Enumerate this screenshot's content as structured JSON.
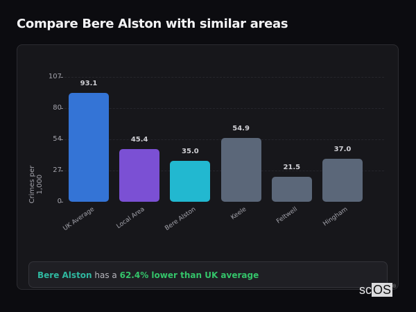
{
  "header": {
    "title": "Compare Bere Alston with similar areas"
  },
  "chart_data": {
    "type": "bar",
    "title": "Compare Bere Alston with similar areas",
    "xlabel": "",
    "ylabel": "Crimes per 1,000",
    "ylim": [
      0,
      107
    ],
    "yticks": [
      "0",
      "27",
      "54",
      "80",
      "107"
    ],
    "grid": true,
    "categories": [
      "UK Average",
      "Local Area",
      "Bere Alston",
      "Keele",
      "Feltwell",
      "Hingham"
    ],
    "values": [
      93.1,
      45.4,
      35.0,
      54.9,
      21.5,
      37.0
    ],
    "value_labels": [
      "93.1",
      "45.4",
      "35.0",
      "54.9",
      "21.5",
      "37.0"
    ],
    "colors": [
      "#3474d6",
      "#7b50d4",
      "#22b8d0",
      "#5b6779",
      "#5b6779",
      "#5b6779"
    ]
  },
  "summary": {
    "area": "Bere Alston",
    "middle": " has a ",
    "stat": "62.4% lower than UK average"
  },
  "logo": {
    "prefix": "sc",
    "highlight": "OS",
    "mark": "®"
  }
}
